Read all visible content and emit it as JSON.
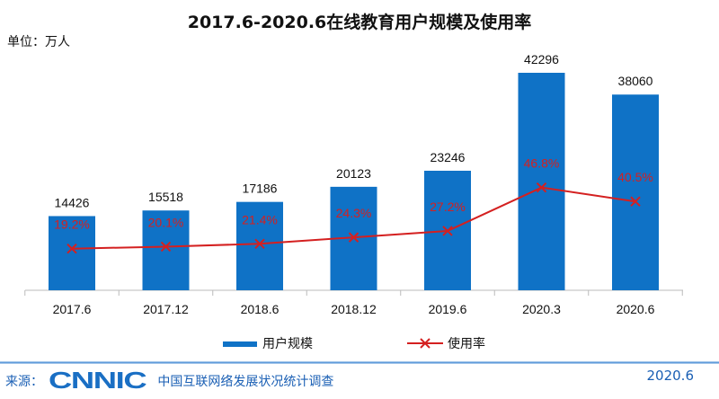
{
  "title": "2017.6-2020.6在线教育用户规模及使用率",
  "unit": "单位：万人",
  "chart_data": {
    "type": "bar+line",
    "title": "2017.6-2020.6在线教育用户规模及使用率",
    "categories": [
      "2017.6",
      "2017.12",
      "2018.6",
      "2018.12",
      "2019.6",
      "2020.3",
      "2020.6"
    ],
    "series": [
      {
        "name": "用户规模",
        "type": "bar",
        "values": [
          14426,
          15518,
          17186,
          20123,
          23246,
          42296,
          38060
        ],
        "labels": [
          "14426",
          "15518",
          "17186",
          "20123",
          "23246",
          "42296",
          "38060"
        ],
        "color": "#0f72c6"
      },
      {
        "name": "使用率",
        "type": "line",
        "values": [
          19.2,
          20.1,
          21.4,
          24.3,
          27.2,
          46.8,
          40.5
        ],
        "labels": [
          "19.2%",
          "20.1%",
          "21.4%",
          "24.3%",
          "27.2%",
          "46.8%",
          "40.5%"
        ],
        "color": "#d42020"
      }
    ],
    "grid": false,
    "legend": "bottom"
  },
  "footer": {
    "source_label": "来源：",
    "logo": "CNNIC",
    "org": "中国互联网络发展状况统计调查",
    "date": "2020.6"
  }
}
